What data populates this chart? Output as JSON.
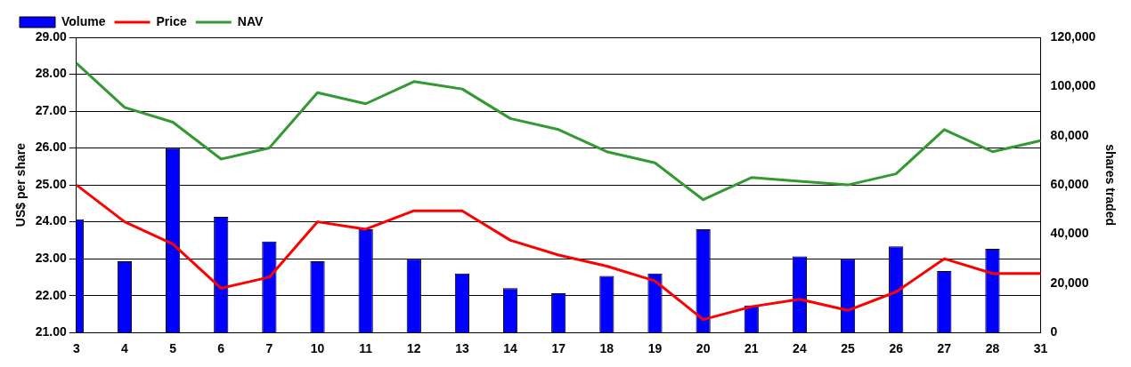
{
  "chart_data": {
    "type": "bar",
    "categories": [
      "3",
      "4",
      "5",
      "6",
      "7",
      "10",
      "11",
      "12",
      "13",
      "14",
      "17",
      "18",
      "19",
      "20",
      "21",
      "24",
      "25",
      "26",
      "27",
      "28",
      "31"
    ],
    "ylabel": "US$ per share",
    "y2label": "shares traded",
    "ylim": [
      21,
      29
    ],
    "yticks": [
      {
        "value": 21,
        "label": "21.00"
      },
      {
        "value": 22,
        "label": "22.00"
      },
      {
        "value": 23,
        "label": "23.00"
      },
      {
        "value": 24,
        "label": "24.00"
      },
      {
        "value": 25,
        "label": "25.00"
      },
      {
        "value": 26,
        "label": "26.00"
      },
      {
        "value": 27,
        "label": "27.00"
      },
      {
        "value": 28,
        "label": "28.00"
      },
      {
        "value": 29,
        "label": "29.00"
      }
    ],
    "y2lim": [
      0,
      120000
    ],
    "y2ticks": [
      {
        "value": 0,
        "label": "0"
      },
      {
        "value": 20000,
        "label": "20,000"
      },
      {
        "value": 40000,
        "label": "40,000"
      },
      {
        "value": 60000,
        "label": "60,000"
      },
      {
        "value": 80000,
        "label": "80,000"
      },
      {
        "value": 100000,
        "label": "100,000"
      },
      {
        "value": 120000,
        "label": "120,000"
      }
    ],
    "series": [
      {
        "name": "Volume",
        "axis": "y2",
        "color": "#0000ff",
        "values": [
          46000,
          29000,
          75000,
          47000,
          37000,
          29000,
          42000,
          30000,
          24000,
          18000,
          16000,
          23000,
          24000,
          42000,
          11000,
          31000,
          30000,
          35000,
          25000,
          34000,
          null
        ]
      },
      {
        "name": "Price",
        "type": "line",
        "color": "#ff0000",
        "values": [
          25.0,
          24.0,
          23.4,
          22.2,
          22.5,
          24.0,
          23.8,
          24.3,
          24.3,
          23.5,
          23.1,
          22.8,
          22.4,
          21.35,
          21.7,
          21.9,
          21.6,
          22.1,
          23.0,
          22.6,
          22.6
        ]
      },
      {
        "name": "NAV",
        "type": "line",
        "color": "#339933",
        "values": [
          28.3,
          27.1,
          26.7,
          25.7,
          26.0,
          27.5,
          27.2,
          27.8,
          27.6,
          26.8,
          26.5,
          25.9,
          25.6,
          24.6,
          25.2,
          25.1,
          25.0,
          25.3,
          26.5,
          25.9,
          26.2
        ]
      }
    ],
    "grid": "y",
    "legend": "top left",
    "marker": "none"
  }
}
